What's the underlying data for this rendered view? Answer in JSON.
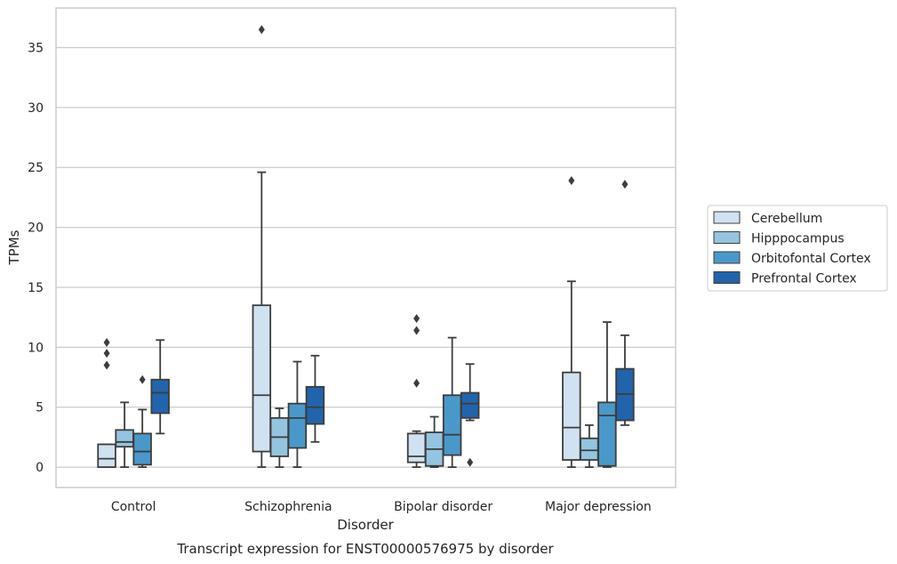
{
  "chart_data": {
    "type": "box",
    "xlabel": "Disorder",
    "ylabel": "TPMs",
    "caption": "Transcript expression for ENST00000576975 by disorder",
    "ylim": [
      -1.7,
      38.3
    ],
    "yticks": [
      "0",
      "5",
      "10",
      "15",
      "20",
      "25",
      "30",
      "35"
    ],
    "grid": true,
    "legend_position": "right",
    "categories": [
      "Control",
      "Schizophrenia",
      "Bipolar disorder",
      "Major depression"
    ],
    "series": [
      {
        "name": "Cerebellum",
        "color": "#d0e1f2",
        "boxes": [
          {
            "q1": 0,
            "median": 0.7,
            "q3": 1.9,
            "whisker_low": 0,
            "whisker_high": 1.9,
            "outliers": [
              8.5,
              9.5,
              10.4
            ]
          },
          {
            "q1": 1.3,
            "median": 6.0,
            "q3": 13.5,
            "whisker_low": 0,
            "whisker_high": 24.6,
            "outliers": [
              36.5
            ]
          },
          {
            "q1": 0.4,
            "median": 0.9,
            "q3": 2.8,
            "whisker_low": 0,
            "whisker_high": 3.0,
            "outliers": [
              7.0,
              11.4,
              12.4
            ]
          },
          {
            "q1": 0.6,
            "median": 3.3,
            "q3": 7.9,
            "whisker_low": 0,
            "whisker_high": 15.5,
            "outliers": [
              23.9
            ]
          }
        ]
      },
      {
        "name": "Hipppocampus",
        "color": "#94c4df",
        "boxes": [
          {
            "q1": 1.7,
            "median": 2.1,
            "q3": 3.1,
            "whisker_low": 0,
            "whisker_high": 5.4,
            "outliers": []
          },
          {
            "q1": 0.9,
            "median": 2.5,
            "q3": 4.1,
            "whisker_low": 0,
            "whisker_high": 4.9,
            "outliers": []
          },
          {
            "q1": 0.1,
            "median": 1.5,
            "q3": 2.9,
            "whisker_low": 0,
            "whisker_high": 4.2,
            "outliers": []
          },
          {
            "q1": 0.6,
            "median": 1.4,
            "q3": 2.4,
            "whisker_low": 0,
            "whisker_high": 3.5,
            "outliers": []
          }
        ]
      },
      {
        "name": "Orbitofontal Cortex",
        "color": "#4a98c9",
        "boxes": [
          {
            "q1": 0.2,
            "median": 1.3,
            "q3": 2.8,
            "whisker_low": 0,
            "whisker_high": 4.8,
            "outliers": [
              7.3
            ]
          },
          {
            "q1": 1.6,
            "median": 4.1,
            "q3": 5.3,
            "whisker_low": 0,
            "whisker_high": 8.8,
            "outliers": []
          },
          {
            "q1": 1.0,
            "median": 2.7,
            "q3": 6.0,
            "whisker_low": 0,
            "whisker_high": 10.8,
            "outliers": []
          },
          {
            "q1": 0.1,
            "median": 4.3,
            "q3": 5.4,
            "whisker_low": 0,
            "whisker_high": 12.1,
            "outliers": []
          }
        ]
      },
      {
        "name": "Prefrontal Cortex",
        "color": "#2164ab",
        "boxes": [
          {
            "q1": 4.5,
            "median": 6.2,
            "q3": 7.3,
            "whisker_low": 2.8,
            "whisker_high": 10.6,
            "outliers": []
          },
          {
            "q1": 3.6,
            "median": 5.0,
            "q3": 6.7,
            "whisker_low": 2.1,
            "whisker_high": 9.3,
            "outliers": []
          },
          {
            "q1": 4.1,
            "median": 5.3,
            "q3": 6.2,
            "whisker_low": 3.9,
            "whisker_high": 8.6,
            "outliers": [
              0.4
            ]
          },
          {
            "q1": 3.9,
            "median": 6.1,
            "q3": 8.2,
            "whisker_low": 3.5,
            "whisker_high": 11.0,
            "outliers": [
              23.6
            ]
          }
        ]
      }
    ]
  }
}
